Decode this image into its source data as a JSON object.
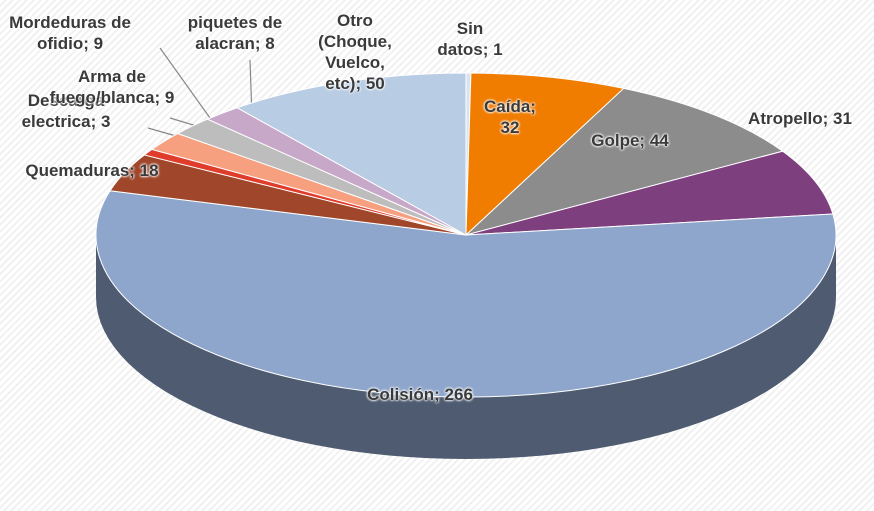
{
  "chart_data": {
    "type": "pie3d",
    "labels": [
      "Sin datos; 1",
      "Caída; 32",
      "Golpe; 44",
      "Atropello; 31",
      "Colisión; 266",
      "Quemaduras; 18",
      "Descarga electrica; 3",
      "Arma de fuego/blanca; 9",
      "Mordeduras de ofidio; 9",
      "piquetes de alacran; 8",
      "Otro (Choque, Vuelco, etc); 50"
    ],
    "values": [
      1,
      32,
      44,
      31,
      266,
      18,
      3,
      9,
      9,
      8,
      50
    ],
    "colors": [
      "#d9e4f2",
      "#f07c00",
      "#8c8c8c",
      "#7e3f7e",
      "#8ea6cc",
      "#a0462a",
      "#e03c2c",
      "#f6a080",
      "#bdbdbd",
      "#c8a8c8",
      "#b8cce4"
    ]
  }
}
